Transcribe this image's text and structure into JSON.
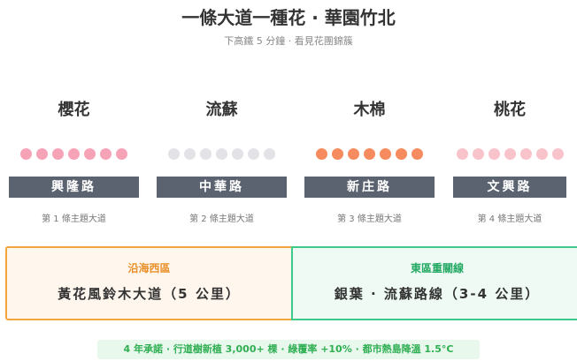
{
  "header": {
    "title": "一條大道一種花 · 華園竹北",
    "subtitle": "下高鐵 5 分鐘 · 看見花團錦簇"
  },
  "columns": [
    {
      "flower": "櫻花",
      "dot_color": "#f6a3b8",
      "road": "興隆路",
      "caption": "第 1 條主題大道"
    },
    {
      "flower": "流蘇",
      "dot_color": "#e2e2e7",
      "road": "中華路",
      "caption": "第 2 條主題大道"
    },
    {
      "flower": "木棉",
      "dot_color": "#f58b5e",
      "road": "新庄路",
      "caption": "第 3 條主題大道"
    },
    {
      "flower": "桃花",
      "dot_color": "#f9c3cc",
      "road": "文興路",
      "caption": "第 4 條主題大道"
    }
  ],
  "zones": [
    {
      "region": "沿海西區",
      "route": "黃花風鈴木大道（5 公里）"
    },
    {
      "region": "東區重關線",
      "route": "銀葉 · 流蘇路線（3-4 公里）"
    }
  ],
  "footer": "4 年承諾 · 行道樹新植 3,000+ 棵 · 綠覆率 +10% · 都市熱島降溫 1.5°C"
}
